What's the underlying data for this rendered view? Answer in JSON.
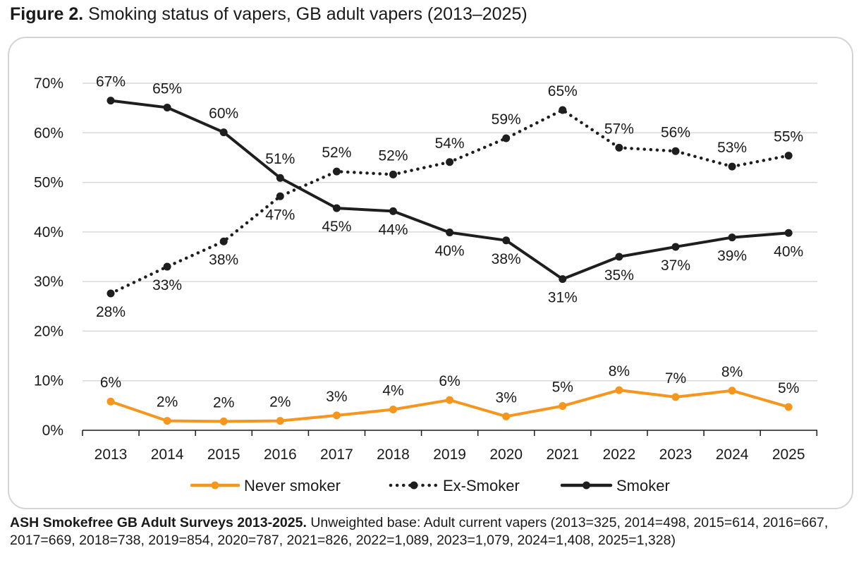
{
  "figure": {
    "label": "Figure 2.",
    "title": "Smoking status of vapers, GB adult vapers (2013–2025)"
  },
  "source": {
    "label": "ASH Smokefree GB Adult Surveys 2013-2025.",
    "text": "Unweighted base: Adult current vapers (2013=325, 2014=498, 2015=614, 2016=667, 2017=669, 2018=738, 2019=854, 2020=787, 2021=826, 2022=1,089, 2023=1,079, 2024=1,408, 2025=1,328)"
  },
  "colors": {
    "never": "#f5961e",
    "ex": "#1e1e1e",
    "smoker": "#1e1e1e",
    "grid": "#d9d9d9",
    "axis": "#1a1a1a"
  },
  "chart_data": {
    "type": "line",
    "title": "Smoking status of vapers, GB adult vapers (2013–2025)",
    "xlabel": "",
    "ylabel": "",
    "categories": [
      "2013",
      "2014",
      "2015",
      "2016",
      "2017",
      "2018",
      "2019",
      "2020",
      "2021",
      "2022",
      "2023",
      "2024",
      "2025"
    ],
    "ylim": [
      0,
      70
    ],
    "yticks": [
      0,
      10,
      20,
      30,
      40,
      50,
      60,
      70
    ],
    "ytick_labels": [
      "0%",
      "10%",
      "20%",
      "30%",
      "40%",
      "50%",
      "60%",
      "70%"
    ],
    "grid": true,
    "legend_position": "bottom",
    "series": [
      {
        "name": "Never smoker",
        "key": "never",
        "style": "solid",
        "values": [
          5.8,
          1.9,
          1.8,
          1.9,
          3.0,
          4.2,
          6.1,
          2.8,
          4.9,
          8.1,
          6.7,
          8.0,
          4.7
        ],
        "labels": [
          "6%",
          "2%",
          "2%",
          "2%",
          "3%",
          "4%",
          "6%",
          "3%",
          "5%",
          "8%",
          "7%",
          "8%",
          "5%"
        ]
      },
      {
        "name": "Ex-Smoker",
        "key": "ex",
        "style": "dotted",
        "values": [
          27.6,
          33.0,
          38.1,
          47.2,
          52.2,
          51.6,
          54.1,
          58.9,
          64.6,
          57.0,
          56.3,
          53.2,
          55.4
        ],
        "labels": [
          "28%",
          "33%",
          "38%",
          "47%",
          "52%",
          "52%",
          "54%",
          "59%",
          "65%",
          "57%",
          "56%",
          "53%",
          "55%"
        ]
      },
      {
        "name": "Smoker",
        "key": "smoker",
        "style": "solid",
        "values": [
          66.5,
          65.1,
          60.1,
          50.9,
          44.8,
          44.2,
          39.9,
          38.3,
          30.5,
          35.0,
          37.0,
          38.9,
          39.8
        ],
        "labels": [
          "67%",
          "65%",
          "60%",
          "51%",
          "45%",
          "44%",
          "40%",
          "38%",
          "31%",
          "35%",
          "37%",
          "39%",
          "40%"
        ]
      }
    ]
  }
}
